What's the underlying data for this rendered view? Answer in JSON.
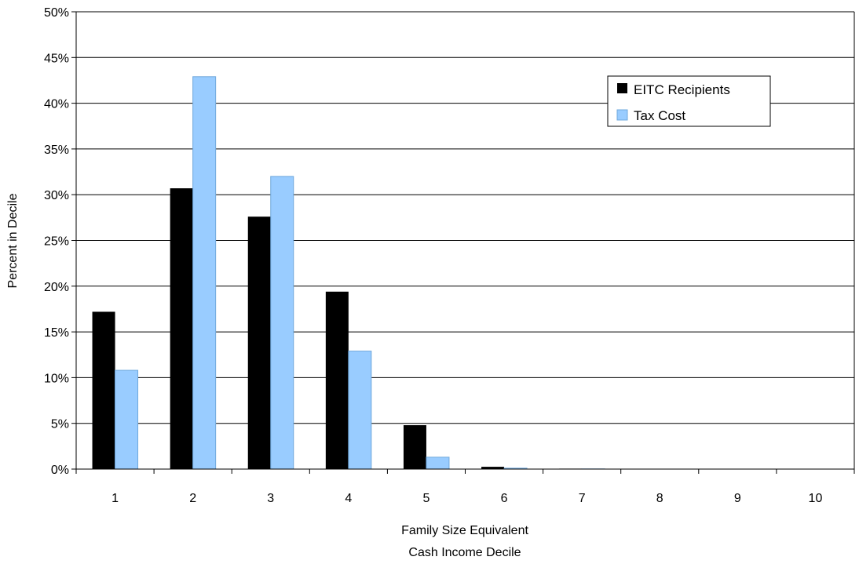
{
  "chart_data": {
    "type": "bar",
    "categories": [
      "1",
      "2",
      "3",
      "4",
      "5",
      "6",
      "7",
      "8",
      "9",
      "10"
    ],
    "series": [
      {
        "name": "EITC Recipients",
        "values": [
          17.2,
          30.7,
          27.6,
          19.4,
          4.8,
          0.25,
          0.05,
          0.0,
          0.0,
          0.0
        ],
        "color": "#000000"
      },
      {
        "name": "Tax Cost",
        "values": [
          10.8,
          42.9,
          32.0,
          12.9,
          1.3,
          0.1,
          0.02,
          0.0,
          0.0,
          0.0
        ],
        "color": "#99CCFF",
        "stroke": "#6FA8DC"
      }
    ],
    "ylim": [
      0,
      50
    ],
    "yticks": [
      "0%",
      "5%",
      "10%",
      "15%",
      "20%",
      "25%",
      "30%",
      "35%",
      "40%",
      "45%",
      "50%"
    ],
    "ylabel": "Percent in Decile",
    "xlabel_line1": "Family Size Equivalent",
    "xlabel_line2": "Cash Income Decile",
    "grid": true,
    "legend_position": "top-right"
  }
}
